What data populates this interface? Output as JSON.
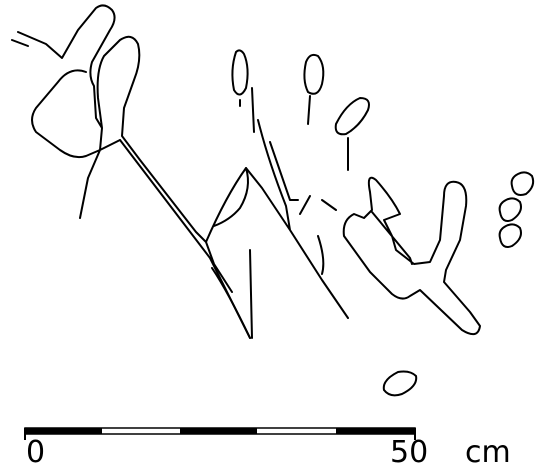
{
  "scale_bar": {
    "start_label": "0",
    "end_label": "50",
    "unit": "cm"
  }
}
